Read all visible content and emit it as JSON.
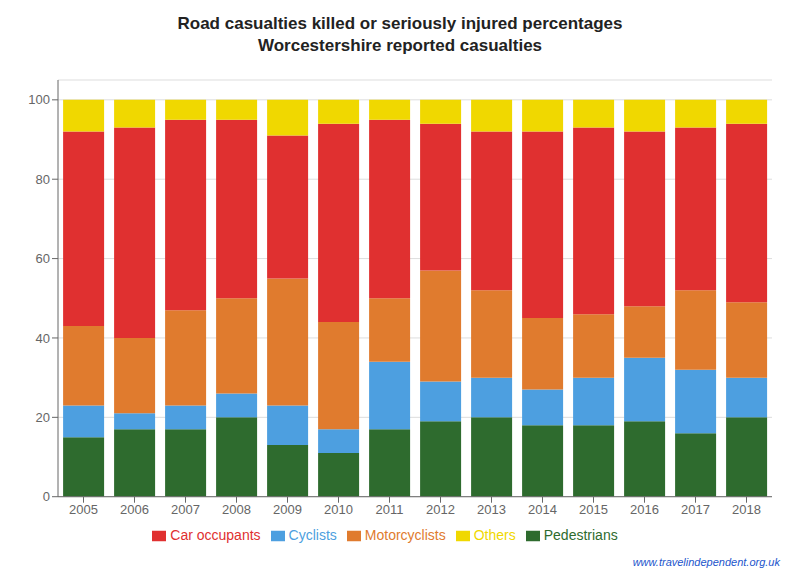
{
  "chart_data": {
    "type": "bar",
    "title": "Road casualties killed or seriously injured percentages",
    "subtitle": "Worcestershire reported casualties",
    "categories": [
      "2005",
      "2006",
      "2007",
      "2008",
      "2009",
      "2010",
      "2011",
      "2012",
      "2013",
      "2014",
      "2015",
      "2016",
      "2017",
      "2018"
    ],
    "series": [
      {
        "name": "Pedestrians",
        "color": "#2e6b2e",
        "values": [
          15,
          17,
          17,
          20,
          13,
          11,
          17,
          19,
          20,
          18,
          18,
          19,
          16,
          20
        ]
      },
      {
        "name": "Cyclists",
        "color": "#4d9fe0",
        "values": [
          8,
          4,
          6,
          6,
          10,
          6,
          17,
          10,
          10,
          9,
          12,
          16,
          16,
          10
        ]
      },
      {
        "name": "Motorcyclists",
        "color": "#e07b2e",
        "values": [
          20,
          19,
          24,
          24,
          32,
          27,
          16,
          28,
          22,
          18,
          16,
          13,
          20,
          19
        ]
      },
      {
        "name": "Car occupants",
        "color": "#e03030",
        "values": [
          49,
          53,
          48,
          45,
          36,
          50,
          45,
          37,
          40,
          47,
          47,
          44,
          41,
          45
        ]
      },
      {
        "name": "Others",
        "color": "#f0d800",
        "values": [
          8,
          7,
          5,
          5,
          9,
          6,
          5,
          6,
          8,
          8,
          7,
          8,
          7,
          6
        ]
      }
    ],
    "ylim": [
      0,
      105
    ],
    "yticks": [
      0,
      20,
      40,
      60,
      80,
      100
    ],
    "stacked": true,
    "grid": true,
    "legend": "bottom",
    "annotations": [
      "www.travelindependent.org.uk"
    ]
  }
}
